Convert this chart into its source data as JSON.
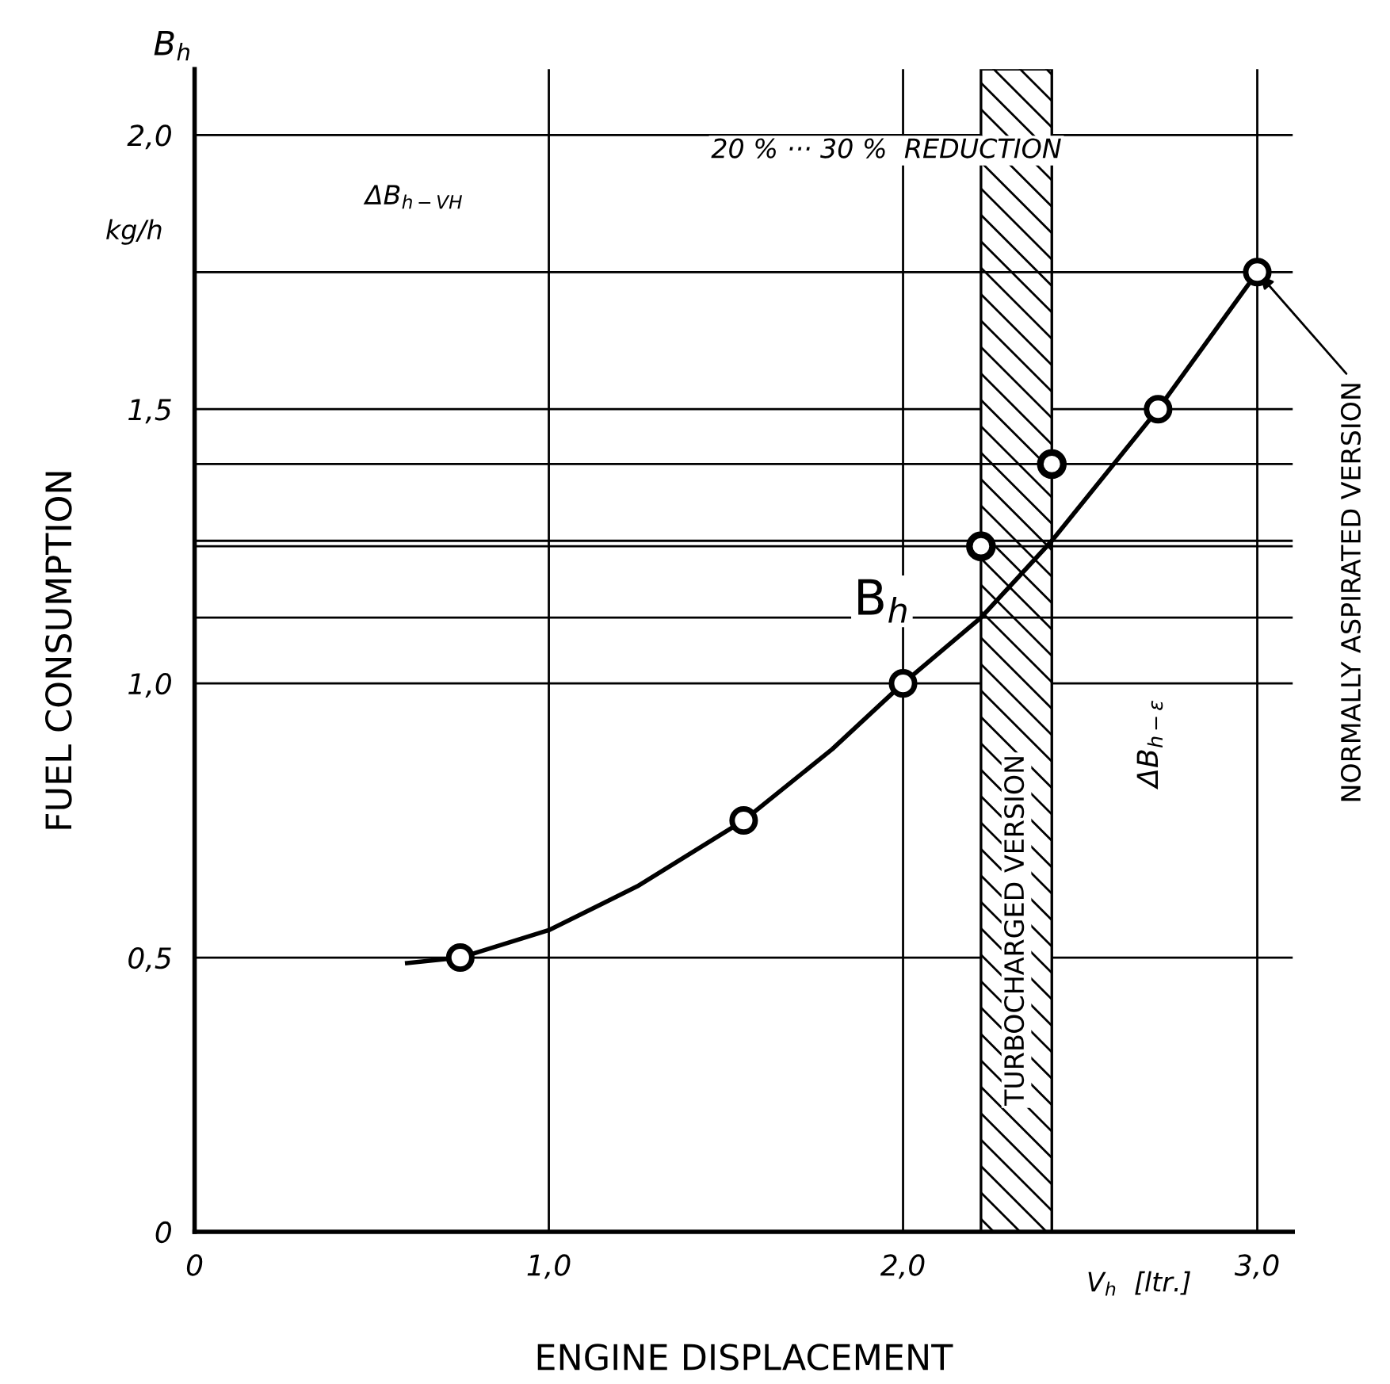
{
  "chart_data": {
    "type": "line",
    "xlabel": "ENGINE DISPLACEMENT",
    "ylabel": "FUEL CONSUMPTION",
    "xlim": [
      0,
      3.1
    ],
    "ylim": [
      0,
      2.12
    ],
    "xticks": [
      0,
      {
        "value": 1.0,
        "label": "1,0"
      },
      {
        "value": 2.0,
        "label": "2,0"
      },
      {
        "value": 3.0,
        "label": "3,0"
      }
    ],
    "yticks": [
      0,
      {
        "value": 0.5,
        "label": "0,5"
      },
      {
        "value": 1.0,
        "label": "1,0"
      },
      {
        "value": 1.5,
        "label": "1,5"
      },
      {
        "value": 2.0,
        "label": "2,0"
      }
    ],
    "grid": true,
    "series": [
      {
        "color": "#000000",
        "marker": "none",
        "line_style": "solid",
        "x": [
          0.6,
          0.75,
          1.0,
          1.25,
          1.55,
          1.8,
          2.0,
          2.22,
          2.42,
          2.72,
          3.0
        ],
        "values": [
          0.49,
          0.5,
          0.55,
          0.63,
          0.75,
          0.88,
          1.0,
          1.12,
          1.26,
          1.5,
          1.75
        ]
      },
      {
        "type": "scatter",
        "color": "#000000",
        "marker": "circle",
        "x": [
          0.75,
          1.55,
          2.0,
          2.72,
          3.0
        ],
        "values": [
          0.5,
          0.75,
          1.0,
          1.5,
          1.75
        ]
      },
      {
        "type": "scatter",
        "color": "#000000",
        "marker": "circle",
        "x": [
          2.22,
          2.42
        ],
        "values": [
          1.25,
          1.4
        ]
      }
    ],
    "ref_lines": [
      {
        "axis": "y",
        "value": 1.75
      },
      {
        "axis": "y",
        "value": 1.4
      },
      {
        "axis": "y",
        "value": 1.26
      },
      {
        "axis": "y",
        "value": 1.25
      },
      {
        "axis": "y",
        "value": 1.12
      }
    ],
    "bands": [
      {
        "axis": "x",
        "from": 2.22,
        "to": 2.42,
        "label": "TURBOCHARGED VERSION"
      }
    ],
    "annotations": [
      "B$_{h}$",
      "kg/h",
      "V$_{h}$  [ltr.]",
      "ΔB$_{h−VH}$",
      "20 % ··· 30 %  REDUCTION",
      "ΔB$_{h−ε}$",
      {
        "text": "B$_{h}$",
        "x": 2.22,
        "y": 1.25
      },
      {
        "text": "NORMALLY ASPIRATED VERSION",
        "x": 3.0,
        "y": 1.75
      }
    ]
  }
}
